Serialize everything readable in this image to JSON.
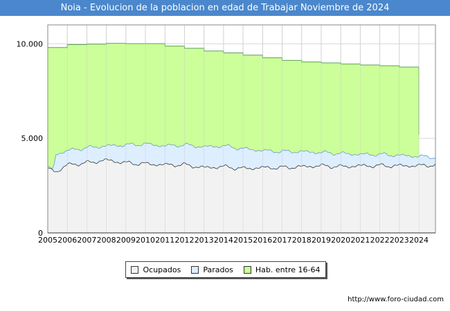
{
  "title": "Noia - Evolucion de la poblacion en edad de Trabajar Noviembre de 2024",
  "footer_url": "http://www.foro-ciudad.com",
  "legend": {
    "items": [
      {
        "label": "Ocupados",
        "color": "#f2f2f2"
      },
      {
        "label": "Parados",
        "color": "#ddeeff"
      },
      {
        "label": "Hab. entre 16-64",
        "color": "#ccff99"
      }
    ]
  },
  "chart_data": {
    "type": "area",
    "ylim": [
      0,
      11000
    ],
    "yticks": [
      0,
      5000,
      10000
    ],
    "ytick_labels": [
      "0",
      "5.000",
      "10.000"
    ],
    "xlim": [
      2005,
      2024.85
    ],
    "xticks": [
      2005,
      2006,
      2007,
      2008,
      2009,
      2010,
      2011,
      2012,
      2013,
      2014,
      2015,
      2016,
      2017,
      2018,
      2019,
      2020,
      2021,
      2022,
      2023,
      2024
    ],
    "grid": true,
    "legend_position": "bottom",
    "series": [
      {
        "name": "Hab. entre 16-64",
        "color": "#ccff99",
        "line_color": "#5aa05a",
        "step_years": [
          2005,
          2006,
          2007,
          2008,
          2009,
          2010,
          2011,
          2012,
          2013,
          2014,
          2015,
          2016,
          2017,
          2018,
          2019,
          2020,
          2021,
          2022,
          2023
        ],
        "step_values": [
          9800,
          9960,
          9980,
          10020,
          10010,
          10010,
          9880,
          9760,
          9620,
          9520,
          9400,
          9260,
          9120,
          9040,
          8990,
          8930,
          8880,
          8840,
          8770
        ],
        "end_year": 2024.0,
        "end_value": 5200
      },
      {
        "name": "Parados",
        "color": "#ddeeff",
        "line_color": "#6699cc",
        "anchor_years": [
          2005,
          2005.3,
          2005.4,
          2006,
          2007,
          2008,
          2009,
          2010,
          2011,
          2012,
          2013,
          2014,
          2015,
          2016,
          2017,
          2018,
          2019,
          2020,
          2021,
          2022,
          2023,
          2024,
          2024.85
        ],
        "anchor_values": [
          3450,
          3350,
          4150,
          4350,
          4500,
          4600,
          4650,
          4700,
          4600,
          4650,
          4550,
          4600,
          4450,
          4350,
          4300,
          4300,
          4250,
          4200,
          4150,
          4150,
          4100,
          4050,
          4000
        ],
        "amplitude": 110
      },
      {
        "name": "Ocupados",
        "color": "#f2f2f2",
        "line_color": "#333333",
        "anchor_years": [
          2005,
          2005.5,
          2006,
          2007,
          2008,
          2009,
          2010,
          2011,
          2012,
          2013,
          2014,
          2015,
          2016,
          2017,
          2018,
          2019,
          2020,
          2021,
          2022,
          2023,
          2024,
          2024.85
        ],
        "anchor_values": [
          3400,
          3250,
          3600,
          3700,
          3850,
          3700,
          3650,
          3600,
          3600,
          3450,
          3500,
          3400,
          3450,
          3450,
          3500,
          3550,
          3500,
          3550,
          3550,
          3550,
          3550,
          3600
        ],
        "amplitude": 120
      }
    ]
  }
}
